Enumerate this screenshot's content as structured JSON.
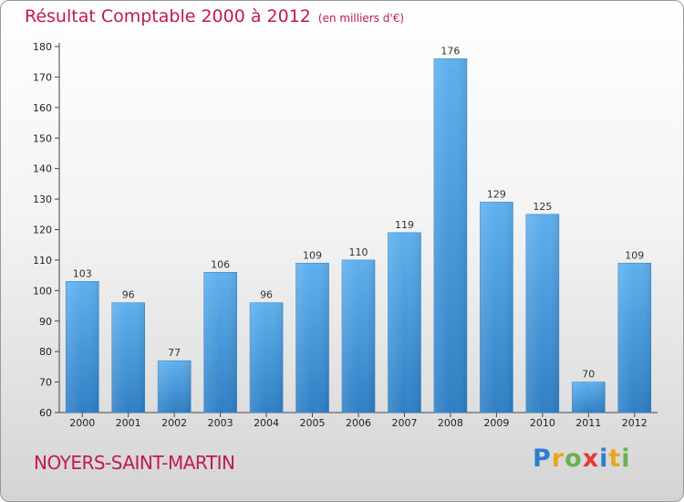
{
  "header": {
    "title": "Résultat Comptable 2000 à 2012",
    "subtitle": "(en milliers d'€)"
  },
  "footer": {
    "city": "NOYERS-SAINT-MARTIN",
    "logo_letters": [
      {
        "char": "P",
        "color": "#2e7dd1"
      },
      {
        "char": "r",
        "color": "#e8a81c"
      },
      {
        "char": "o",
        "color": "#6ab04c"
      },
      {
        "char": "x",
        "color": "#e53935"
      },
      {
        "char": "i",
        "color": "#2e7dd1"
      },
      {
        "char": "t",
        "color": "#e8a81c"
      },
      {
        "char": "i",
        "color": "#6ab04c"
      }
    ]
  },
  "chart_data": {
    "type": "bar",
    "title": "Résultat Comptable 2000 à 2012",
    "subtitle": "(en milliers d'€)",
    "categories": [
      "2000",
      "2001",
      "2002",
      "2003",
      "2004",
      "2005",
      "2006",
      "2007",
      "2008",
      "2009",
      "2010",
      "2011",
      "2012"
    ],
    "values": [
      103,
      96,
      77,
      106,
      96,
      109,
      110,
      119,
      176,
      129,
      125,
      70,
      109
    ],
    "ylim": [
      60,
      180
    ],
    "yticks": [
      60,
      70,
      80,
      90,
      100,
      110,
      120,
      130,
      140,
      150,
      160,
      170,
      180
    ],
    "grid": false,
    "bar_color": "#4a9be0",
    "title_color": "#c2185b"
  }
}
